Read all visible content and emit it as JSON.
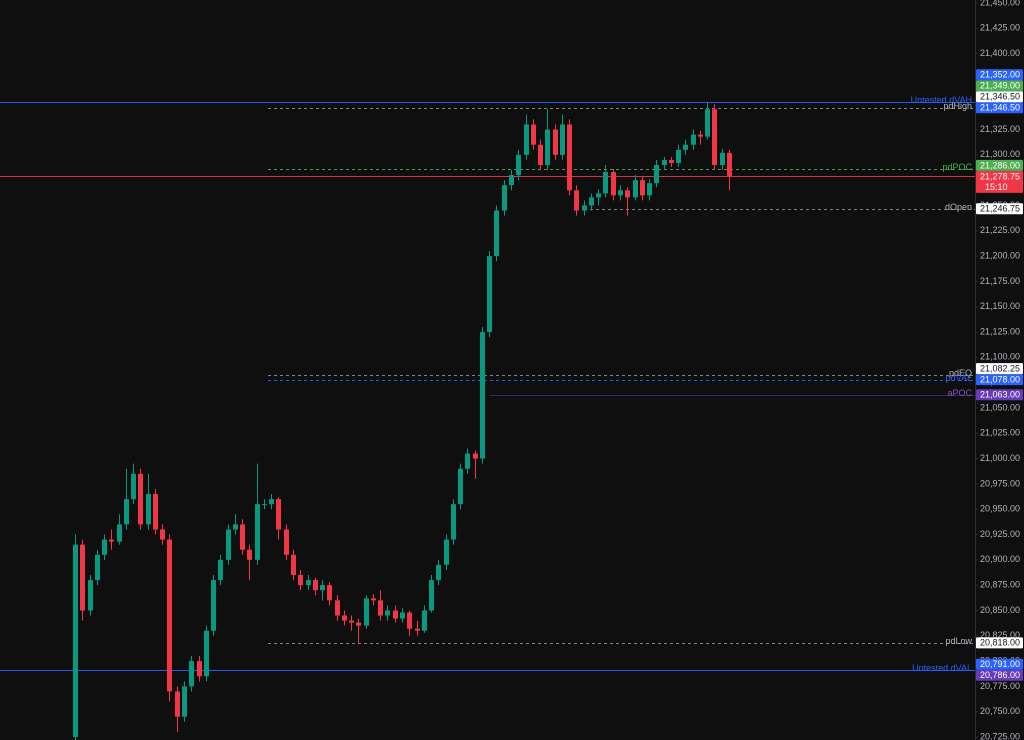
{
  "chart_data": {
    "type": "candlestick",
    "up_color": "#089981",
    "down_color": "#f23645",
    "ylim": [
      20725,
      21450
    ],
    "yticks": [
      {
        "value": 21450,
        "label": "21,450.00"
      },
      {
        "value": 21425,
        "label": "21,425.00"
      },
      {
        "value": 21400,
        "label": "21,400.00"
      },
      {
        "value": 21375,
        "label": "21,375.00"
      },
      {
        "value": 21350,
        "label": "21,350.00"
      },
      {
        "value": 21325,
        "label": "21,325.00"
      },
      {
        "value": 21300,
        "label": "21,300.00"
      },
      {
        "value": 21275,
        "label": "21,275.00"
      },
      {
        "value": 21250,
        "label": "21,250.00"
      },
      {
        "value": 21225,
        "label": "21,225.00"
      },
      {
        "value": 21200,
        "label": "21,200.00"
      },
      {
        "value": 21175,
        "label": "21,175.00"
      },
      {
        "value": 21150,
        "label": "21,150.00"
      },
      {
        "value": 21125,
        "label": "21,125.00"
      },
      {
        "value": 21100,
        "label": "21,100.00"
      },
      {
        "value": 21075,
        "label": "21,075.00"
      },
      {
        "value": 21050,
        "label": "21,050.00"
      },
      {
        "value": 21025,
        "label": "21,025.00"
      },
      {
        "value": 21000,
        "label": "21,000.00"
      },
      {
        "value": 20975,
        "label": "20,975.00"
      },
      {
        "value": 20950,
        "label": "20,950.00"
      },
      {
        "value": 20925,
        "label": "20,925.00"
      },
      {
        "value": 20900,
        "label": "20,900.00"
      },
      {
        "value": 20875,
        "label": "20,875.00"
      },
      {
        "value": 20850,
        "label": "20,850.00"
      },
      {
        "value": 20825,
        "label": "20,825.00"
      },
      {
        "value": 20800,
        "label": "20,800.00"
      },
      {
        "value": 20775,
        "label": "20,775.00"
      },
      {
        "value": 20750,
        "label": "20,750.00"
      },
      {
        "value": 20725,
        "label": "20,725.00"
      }
    ],
    "candles": [
      [
        20725,
        20925,
        20700,
        20915
      ],
      [
        20915,
        20920,
        20840,
        20850
      ],
      [
        20850,
        20885,
        20845,
        20880
      ],
      [
        20880,
        20910,
        20875,
        20905
      ],
      [
        20905,
        20925,
        20900,
        20920
      ],
      [
        20920,
        20930,
        20910,
        20918
      ],
      [
        20918,
        20945,
        20915,
        20935
      ],
      [
        20935,
        20990,
        20930,
        20960
      ],
      [
        20960,
        20995,
        20955,
        20985
      ],
      [
        20985,
        20990,
        20930,
        20935
      ],
      [
        20935,
        20985,
        20930,
        20965
      ],
      [
        20965,
        20970,
        20925,
        20930
      ],
      [
        20930,
        20935,
        20915,
        20920
      ],
      [
        20920,
        20925,
        20760,
        20770
      ],
      [
        20770,
        20775,
        20730,
        20745
      ],
      [
        20745,
        20780,
        20740,
        20775
      ],
      [
        20775,
        20805,
        20770,
        20800
      ],
      [
        20800,
        20805,
        20780,
        20785
      ],
      [
        20785,
        20835,
        20780,
        20830
      ],
      [
        20830,
        20885,
        20825,
        20880
      ],
      [
        20880,
        20905,
        20875,
        20900
      ],
      [
        20900,
        20935,
        20895,
        20930
      ],
      [
        20930,
        20945,
        20925,
        20935
      ],
      [
        20935,
        20940,
        20905,
        20910
      ],
      [
        20910,
        20915,
        20880,
        20900
      ],
      [
        20900,
        20995,
        20895,
        20955
      ],
      [
        20955,
        20960,
        20950,
        20955
      ],
      [
        20955,
        20965,
        20950,
        20960
      ],
      [
        20960,
        20962,
        20920,
        20930
      ],
      [
        20930,
        20935,
        20900,
        20905
      ],
      [
        20905,
        20910,
        20880,
        20885
      ],
      [
        20885,
        20890,
        20870,
        20875
      ],
      [
        20875,
        20885,
        20870,
        20880
      ],
      [
        20880,
        20882,
        20865,
        20870
      ],
      [
        20870,
        20880,
        20860,
        20875
      ],
      [
        20875,
        20878,
        20855,
        20860
      ],
      [
        20860,
        20865,
        20840,
        20845
      ],
      [
        20845,
        20850,
        20835,
        20840
      ],
      [
        20840,
        20845,
        20830,
        20838
      ],
      [
        20838,
        20842,
        20818,
        20835
      ],
      [
        20835,
        20865,
        20832,
        20862
      ],
      [
        20862,
        20866,
        20855,
        20860
      ],
      [
        20860,
        20870,
        20840,
        20845
      ],
      [
        20845,
        20855,
        20840,
        20850
      ],
      [
        20850,
        20855,
        20838,
        20842
      ],
      [
        20842,
        20852,
        20838,
        20848
      ],
      [
        20848,
        20850,
        20825,
        20832
      ],
      [
        20832,
        20840,
        20825,
        20830
      ],
      [
        20830,
        20855,
        20828,
        20850
      ],
      [
        20850,
        20885,
        20848,
        20880
      ],
      [
        20880,
        20900,
        20875,
        20895
      ],
      [
        20895,
        20925,
        20890,
        20920
      ],
      [
        20920,
        20960,
        20915,
        20955
      ],
      [
        20955,
        20995,
        20950,
        20990
      ],
      [
        20990,
        21010,
        20985,
        21005
      ],
      [
        21005,
        21008,
        20980,
        21000
      ],
      [
        21000,
        21130,
        20995,
        21125
      ],
      [
        21125,
        21205,
        21120,
        21200
      ],
      [
        21200,
        21250,
        21195,
        21245
      ],
      [
        21245,
        21275,
        21240,
        21270
      ],
      [
        21270,
        21285,
        21265,
        21280
      ],
      [
        21280,
        21305,
        21275,
        21300
      ],
      [
        21300,
        21340,
        21295,
        21330
      ],
      [
        21330,
        21335,
        21305,
        21310
      ],
      [
        21310,
        21315,
        21285,
        21290
      ],
      [
        21290,
        21345,
        21285,
        21325
      ],
      [
        21325,
        21330,
        21295,
        21300
      ],
      [
        21300,
        21340,
        21295,
        21330
      ],
      [
        21330,
        21335,
        21260,
        21265
      ],
      [
        21265,
        21270,
        21240,
        21245
      ],
      [
        21245,
        21255,
        21240,
        21250
      ],
      [
        21250,
        21262,
        21245,
        21258
      ],
      [
        21258,
        21266,
        21250,
        21262
      ],
      [
        21262,
        21290,
        21258,
        21283
      ],
      [
        21283,
        21286,
        21255,
        21260
      ],
      [
        21260,
        21270,
        21255,
        21265
      ],
      [
        21265,
        21268,
        21240,
        21258
      ],
      [
        21258,
        21280,
        21255,
        21275
      ],
      [
        21275,
        21278,
        21255,
        21260
      ],
      [
        21260,
        21276,
        21255,
        21272
      ],
      [
        21272,
        21295,
        21268,
        21290
      ],
      [
        21290,
        21298,
        21285,
        21295
      ],
      [
        21295,
        21298,
        21288,
        21292
      ],
      [
        21292,
        21310,
        21288,
        21305
      ],
      [
        21305,
        21315,
        21300,
        21310
      ],
      [
        21310,
        21325,
        21305,
        21320
      ],
      [
        21320,
        21324,
        21310,
        21318
      ],
      [
        21318,
        21352,
        21315,
        21345
      ],
      [
        21345,
        21350,
        21285,
        21290
      ],
      [
        21290,
        21306,
        21285,
        21302
      ],
      [
        21302,
        21305,
        21265,
        21278.75
      ]
    ],
    "levels": [
      {
        "name": "Untested dVAH",
        "value": 21352,
        "value_label": "21,352.00",
        "color": "#2962ff",
        "line": "solid"
      },
      {
        "name": null,
        "value": 21349,
        "value_label": "21,349.00",
        "color": "#4caf50",
        "line": "none"
      },
      {
        "name": null,
        "value": 21346.5,
        "value_label": "21,346.50",
        "color": "#2962ff",
        "line": "none"
      },
      {
        "name": "pdHigh",
        "value": 21346.5,
        "value_label": "21,346.50",
        "color": "#ffffff",
        "line": "dashed"
      },
      {
        "name": "pdPOC",
        "value": 21286,
        "value_label": "21,286.00",
        "color": "#4caf50",
        "line": "dashed"
      },
      {
        "name": null,
        "value": 21278.75,
        "value_label": "21,278.75",
        "color": "#f23645",
        "line": "solid",
        "countdown": "15:10"
      },
      {
        "name": "dOpen",
        "value": 21246.75,
        "value_label": "21,246.75",
        "color": "#ffffff",
        "line": "dashed"
      },
      {
        "name": "pdEQ",
        "value": 21082.25,
        "value_label": "21,082.25",
        "color": "#ffffff",
        "line": "dashed"
      },
      {
        "name": "pdVAL",
        "value": 21078,
        "value_label": "21,078.00",
        "color": "#2962ff",
        "line": "dashed"
      },
      {
        "name": "aPOC",
        "value": 21063,
        "value_label": "21,063.00",
        "color": "#673ab7",
        "line": "solid"
      },
      {
        "name": "pdLow",
        "value": 20818,
        "value_label": "20,818.00",
        "color": "#ffffff",
        "line": "dashed"
      },
      {
        "name": "Untested dVAL",
        "value": 20791,
        "value_label": "20,791.00",
        "color": "#2962ff",
        "line": "solid"
      },
      {
        "name": "aPOC",
        "value": 20786,
        "value_label": "20,786.00",
        "color": "#673ab7",
        "line": "none"
      }
    ]
  }
}
